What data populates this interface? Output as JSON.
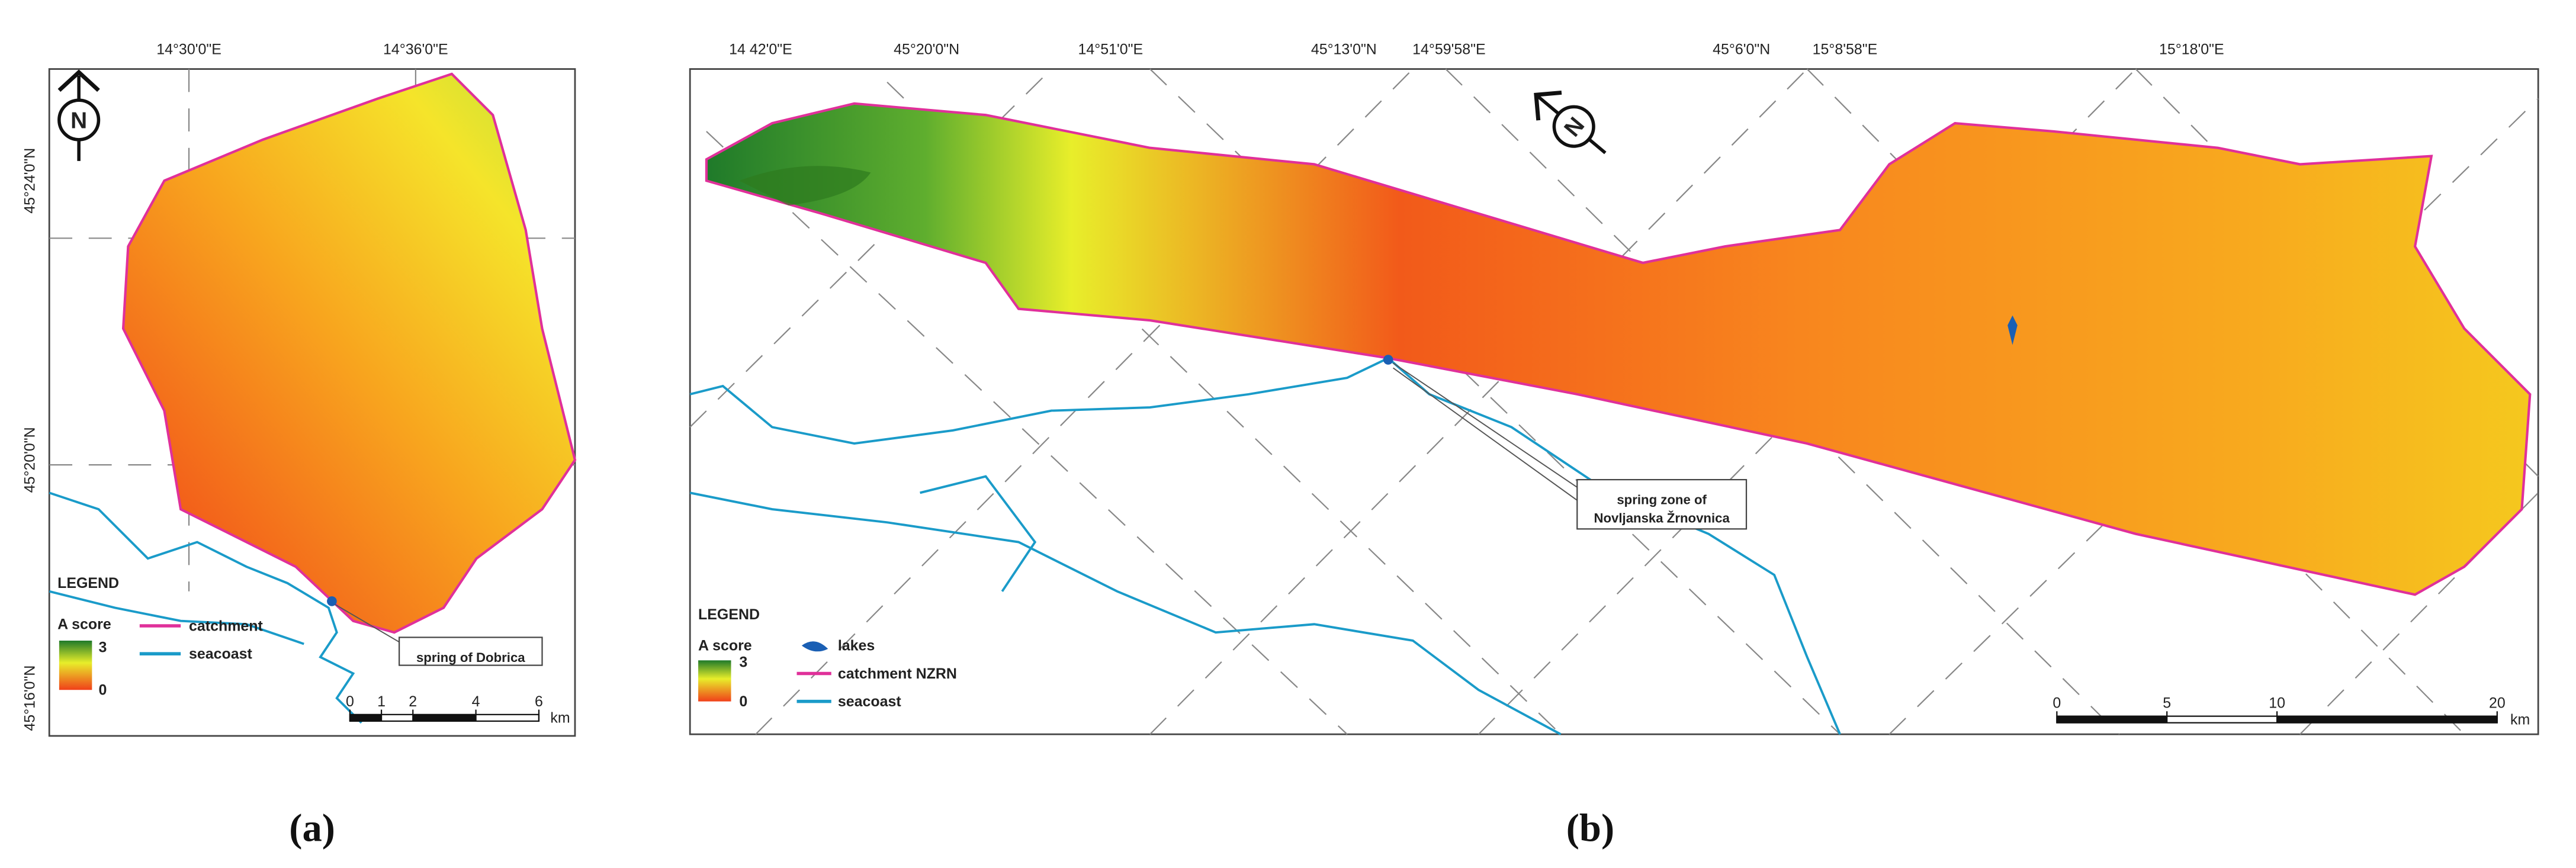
{
  "panels": [
    {
      "label": "(a)",
      "top_labels": [
        "14°30'0\"E",
        "14°36'0\"E"
      ],
      "left_labels": [
        "45°24'0\"N",
        "45°20'0\"N",
        "45°16'0\"N"
      ],
      "north": "N",
      "legend": {
        "title": "LEGEND",
        "score_label": "A score",
        "score_max": 3,
        "score_min": 0,
        "items": [
          "catchment",
          "seacoast"
        ]
      },
      "annotation": [
        "spring of Dobrica"
      ],
      "scale": {
        "ticks": [
          0,
          1,
          2,
          4,
          6
        ],
        "unit": "km"
      }
    },
    {
      "label": "(b)",
      "top_labels": [
        "14 42'0\"E",
        "45°20'0\"N",
        "14°51'0\"E",
        "45°13'0\"N",
        "14°59'58\"E",
        "45°6'0\"N",
        "15°8'58\"E",
        "15°18'0\"E"
      ],
      "left_labels": [],
      "north": "N",
      "legend": {
        "title": "LEGEND",
        "score_label": "A score",
        "score_max": 3,
        "score_min": 0,
        "items": [
          "lakes",
          "catchment NZRN",
          "seacoast"
        ]
      },
      "annotation": [
        "spring zone of",
        "Novljanska Žrnovnica"
      ],
      "scale": {
        "ticks": [
          0,
          5,
          10,
          20
        ],
        "unit": "km"
      }
    }
  ]
}
